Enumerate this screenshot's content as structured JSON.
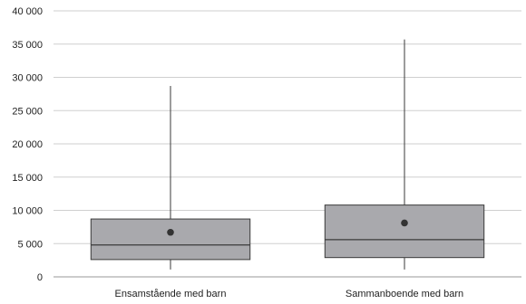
{
  "chart_data": {
    "type": "box",
    "title": "",
    "xlabel": "",
    "ylabel": "",
    "ylim": [
      0,
      40000
    ],
    "grid": true,
    "y_ticks": [
      {
        "value": 0,
        "label": "0"
      },
      {
        "value": 5000,
        "label": "5 000"
      },
      {
        "value": 10000,
        "label": "10 000"
      },
      {
        "value": 15000,
        "label": "15 000"
      },
      {
        "value": 20000,
        "label": "20 000"
      },
      {
        "value": 25000,
        "label": "25 000"
      },
      {
        "value": 30000,
        "label": "30 000"
      },
      {
        "value": 35000,
        "label": "35 000"
      },
      {
        "value": 40000,
        "label": "40 000"
      }
    ],
    "categories": [
      "Ensamstående med barn",
      "Sammanboende med barn"
    ],
    "boxes": [
      {
        "min": 1100,
        "q1": 2600,
        "median": 4800,
        "q3": 8700,
        "max": 28700,
        "mean": 6700
      },
      {
        "min": 1100,
        "q1": 2900,
        "median": 5600,
        "q3": 10800,
        "max": 35700,
        "mean": 8100
      }
    ],
    "colors": {
      "box_fill": "#a9a9ad",
      "box_stroke": "#3a3a3a",
      "whisker": "#3a3a3a",
      "mean_marker": "#333333",
      "grid": "#cfcfcf",
      "axis": "#9a9a9a"
    }
  }
}
